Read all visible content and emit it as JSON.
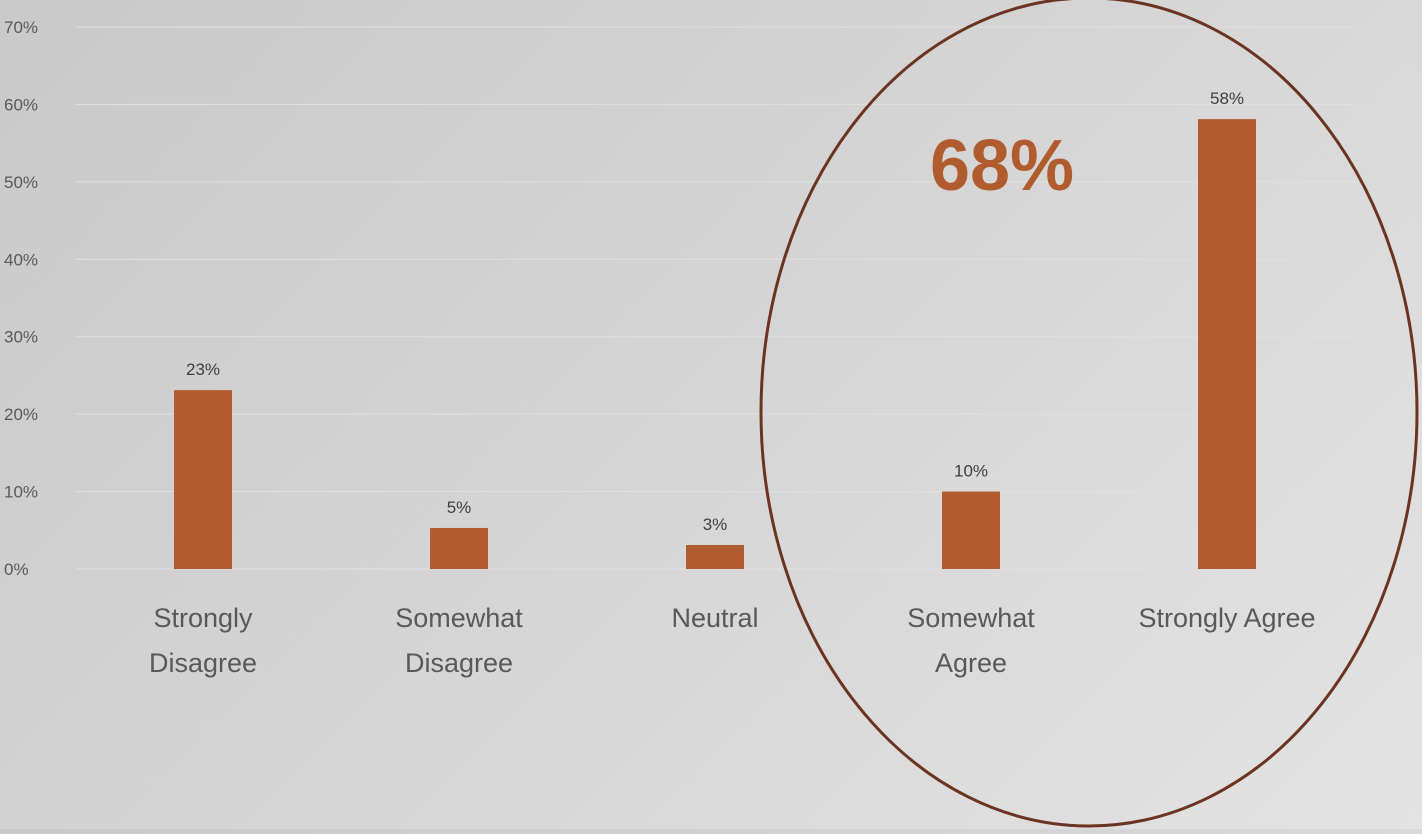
{
  "chart_data": {
    "type": "bar",
    "title": "",
    "xlabel": "",
    "ylabel": "",
    "categories": [
      [
        "Strongly",
        "Disagree"
      ],
      [
        "Somewhat",
        "Disagree"
      ],
      [
        "Neutral"
      ],
      [
        "Somewhat",
        "Agree"
      ],
      [
        "Strongly Agree"
      ]
    ],
    "values": [
      23.1,
      5.3,
      3.1,
      10.0,
      58.1
    ],
    "data_labels": [
      "23%",
      "5%",
      "3%",
      "10%",
      "58%"
    ],
    "ylim": [
      0,
      70
    ],
    "yticks": [
      0,
      10,
      20,
      30,
      40,
      50,
      60,
      70
    ],
    "ytick_labels": [
      "0%",
      "10%",
      "20%",
      "30%",
      "40%",
      "50%",
      "60%",
      "70%"
    ],
    "grid": true,
    "legend": "none",
    "annotations": [
      {
        "text": "68%",
        "kind": "ellipse-callout",
        "encloses": [
          "Somewhat Agree",
          "Strongly Agree"
        ]
      }
    ],
    "colors": {
      "bar": "#B05C2E",
      "callout_text": "#B05C2E",
      "ellipse": "#6B3420",
      "gridline": "#E0E0E0"
    }
  }
}
